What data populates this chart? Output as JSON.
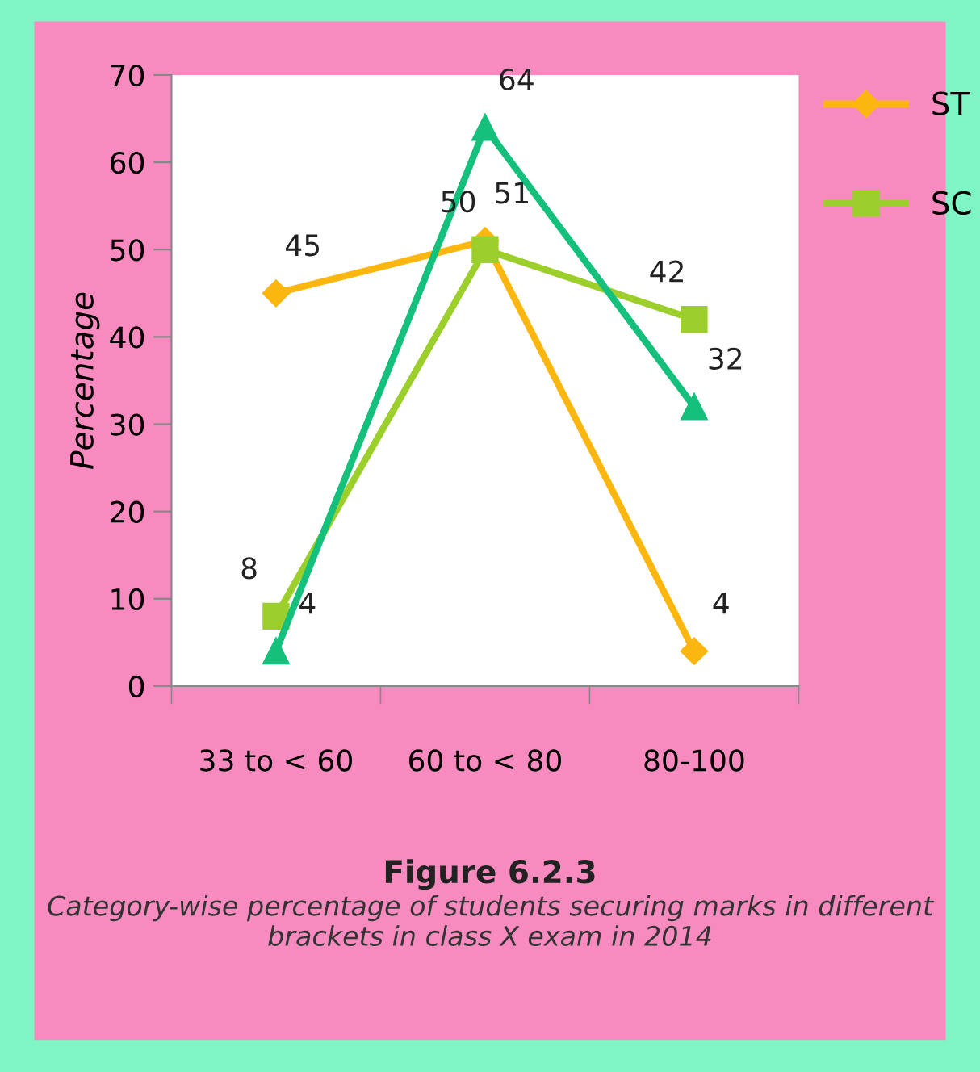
{
  "chart_data": {
    "type": "line",
    "ylabel": "Percentage",
    "categories": [
      "33 to < 60",
      "60 to < 80",
      "80-100"
    ],
    "series": [
      {
        "name": "ST",
        "color": "#fbb710",
        "values": [
          45,
          51,
          4
        ],
        "marker": "diamond"
      },
      {
        "name": "SC",
        "color": "#9ccf2c",
        "values": [
          8,
          50,
          42
        ],
        "marker": "square"
      },
      {
        "color": "#14c07c",
        "values": [
          4,
          64,
          32
        ],
        "marker": "triangle"
      }
    ],
    "ylim": [
      0,
      70
    ],
    "yticks": [
      0,
      10,
      20,
      30,
      40,
      50,
      60,
      70
    ],
    "grid": false,
    "legend": "top right",
    "data_labels": true,
    "line_style": "solid",
    "annotations": [
      "Figure 6.2.3",
      "Category-wise percentage of students securing marks in different brackets in class X exam in 2014"
    ]
  }
}
